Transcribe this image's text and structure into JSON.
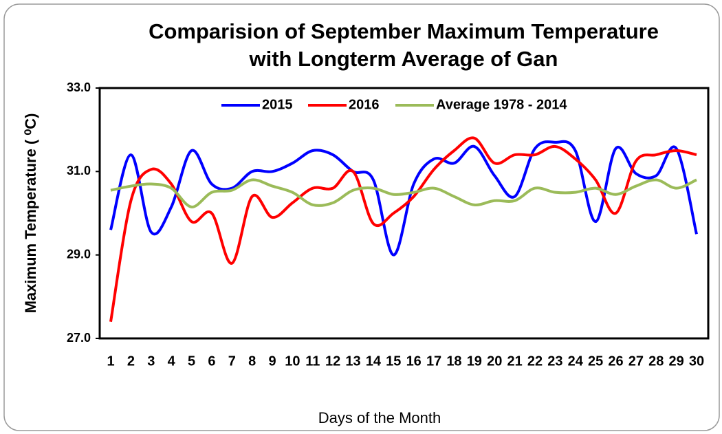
{
  "chart_data": {
    "type": "line",
    "title": "Comparision of September Maximum Temperature with Longterm Average of Gan",
    "x_label": "Days of the Month",
    "y_label": "Maximum Temperature ( ⁰C)",
    "categories": [
      1,
      2,
      3,
      4,
      5,
      6,
      7,
      8,
      9,
      10,
      11,
      12,
      13,
      14,
      15,
      16,
      17,
      18,
      19,
      20,
      21,
      22,
      23,
      24,
      25,
      26,
      27,
      28,
      29,
      30
    ],
    "series": [
      {
        "name": "2015",
        "color": "#0000ff",
        "values": [
          29.6,
          31.4,
          29.55,
          30.15,
          31.5,
          30.7,
          30.6,
          31.0,
          31.0,
          31.2,
          31.5,
          31.4,
          31.0,
          30.8,
          29.0,
          30.7,
          31.3,
          31.2,
          31.6,
          30.9,
          30.4,
          31.55,
          31.7,
          31.5,
          29.8,
          31.55,
          30.95,
          30.9,
          31.55,
          29.5
        ]
      },
      {
        "name": "2016",
        "color": "#ff0000",
        "values": [
          27.4,
          30.3,
          31.05,
          30.7,
          29.8,
          30.0,
          28.8,
          30.4,
          29.9,
          30.25,
          30.6,
          30.6,
          31.0,
          29.75,
          30.0,
          30.4,
          31.05,
          31.5,
          31.8,
          31.2,
          31.4,
          31.4,
          31.6,
          31.3,
          30.8,
          30.0,
          31.25,
          31.4,
          31.5,
          31.4
        ]
      },
      {
        "name": "Average 1978 - 2014",
        "color": "#9bbb59",
        "values": [
          30.55,
          30.65,
          30.7,
          30.6,
          30.15,
          30.5,
          30.55,
          30.8,
          30.65,
          30.5,
          30.2,
          30.25,
          30.55,
          30.6,
          30.45,
          30.5,
          30.6,
          30.4,
          30.2,
          30.3,
          30.3,
          30.6,
          30.5,
          30.5,
          30.6,
          30.45,
          30.65,
          30.8,
          30.6,
          30.8
        ]
      }
    ],
    "ylim": [
      27,
      33
    ],
    "yticks": [
      {
        "value": 27,
        "label": "27.0"
      },
      {
        "value": 29,
        "label": "29.0"
      },
      {
        "value": 31,
        "label": "31.0"
      },
      {
        "value": 33,
        "label": "33.0"
      }
    ],
    "legend": "top"
  }
}
